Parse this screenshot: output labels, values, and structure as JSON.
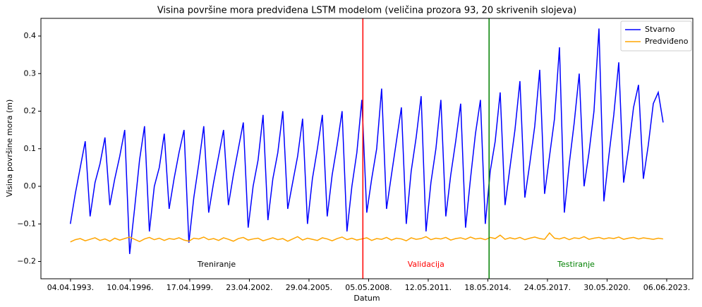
{
  "chart_data": {
    "type": "line",
    "title": "Visina površine mora predviđena LSTM modelom (veličina prozora 93, 20 skrivenih slojeva)",
    "x_label": "Datum",
    "y_label": "Visina površine mora (m)",
    "x": [
      "1993-04-01",
      "1993-07-01",
      "1993-10-01",
      "1994-01-01",
      "1994-04-01",
      "1994-07-01",
      "1994-10-01",
      "1995-01-01",
      "1995-04-01",
      "1995-07-01",
      "1995-10-01",
      "1996-01-01",
      "1996-04-01",
      "1996-07-01",
      "1996-10-01",
      "1997-01-01",
      "1997-04-01",
      "1997-07-01",
      "1997-10-01",
      "1998-01-01",
      "1998-04-01",
      "1998-07-01",
      "1998-10-01",
      "1999-01-01",
      "1999-04-01",
      "1999-07-01",
      "1999-10-01",
      "2000-01-01",
      "2000-04-01",
      "2000-07-01",
      "2000-10-01",
      "2001-01-01",
      "2001-04-01",
      "2001-07-01",
      "2001-10-01",
      "2002-01-01",
      "2002-04-01",
      "2002-07-01",
      "2002-10-01",
      "2003-01-01",
      "2003-04-01",
      "2003-07-01",
      "2003-10-01",
      "2004-01-01",
      "2004-04-01",
      "2004-07-01",
      "2004-10-01",
      "2005-01-01",
      "2005-04-01",
      "2005-07-01",
      "2005-10-01",
      "2006-01-01",
      "2006-04-01",
      "2006-07-01",
      "2006-10-01",
      "2007-01-01",
      "2007-04-01",
      "2007-07-01",
      "2007-10-01",
      "2008-01-01",
      "2008-04-01",
      "2008-07-01",
      "2008-10-01",
      "2009-01-01",
      "2009-04-01",
      "2009-07-01",
      "2009-10-01",
      "2010-01-01",
      "2010-04-01",
      "2010-07-01",
      "2010-10-01",
      "2011-01-01",
      "2011-04-01",
      "2011-07-01",
      "2011-10-01",
      "2012-01-01",
      "2012-04-01",
      "2012-07-01",
      "2012-10-01",
      "2013-01-01",
      "2013-04-01",
      "2013-07-01",
      "2013-10-01",
      "2014-01-01",
      "2014-04-01",
      "2014-07-01",
      "2014-10-01",
      "2015-01-01",
      "2015-04-01",
      "2015-07-01",
      "2015-10-01",
      "2016-01-01",
      "2016-04-01",
      "2016-07-01",
      "2016-10-01",
      "2017-01-01",
      "2017-04-01",
      "2017-07-01",
      "2017-10-01",
      "2018-01-01",
      "2018-04-01",
      "2018-07-01",
      "2018-10-01",
      "2019-01-01",
      "2019-04-01",
      "2019-07-01",
      "2019-10-01",
      "2020-01-01",
      "2020-04-01",
      "2020-07-01",
      "2020-10-01",
      "2021-01-01",
      "2021-04-01",
      "2021-07-01",
      "2021-10-01",
      "2022-01-01",
      "2022-04-01",
      "2022-07-01",
      "2022-10-01",
      "2023-01-01",
      "2023-04-01"
    ],
    "series": [
      {
        "name": "Stvarno",
        "color": "#0000ff",
        "values": [
          -0.1,
          -0.02,
          0.05,
          0.12,
          -0.08,
          0.01,
          0.06,
          0.13,
          -0.05,
          0.02,
          0.08,
          0.15,
          -0.18,
          -0.06,
          0.07,
          0.16,
          -0.12,
          0.0,
          0.05,
          0.14,
          -0.06,
          0.02,
          0.09,
          0.15,
          -0.15,
          -0.03,
          0.06,
          0.16,
          -0.07,
          0.01,
          0.08,
          0.15,
          -0.05,
          0.03,
          0.1,
          0.17,
          -0.11,
          0.0,
          0.07,
          0.19,
          -0.09,
          0.02,
          0.09,
          0.2,
          -0.06,
          0.01,
          0.08,
          0.18,
          -0.1,
          0.02,
          0.1,
          0.19,
          -0.08,
          0.03,
          0.11,
          0.2,
          -0.12,
          0.0,
          0.09,
          0.23,
          -0.07,
          0.02,
          0.1,
          0.26,
          -0.06,
          0.03,
          0.12,
          0.21,
          -0.1,
          0.04,
          0.13,
          0.24,
          -0.12,
          0.01,
          0.1,
          0.23,
          -0.08,
          0.03,
          0.12,
          0.22,
          -0.11,
          0.02,
          0.14,
          0.23,
          -0.1,
          0.04,
          0.12,
          0.25,
          -0.05,
          0.05,
          0.15,
          0.28,
          -0.03,
          0.06,
          0.16,
          0.31,
          -0.02,
          0.08,
          0.18,
          0.37,
          -0.07,
          0.06,
          0.17,
          0.3,
          0.0,
          0.09,
          0.2,
          0.42,
          -0.04,
          0.08,
          0.19,
          0.33,
          0.01,
          0.1,
          0.21,
          0.27,
          0.02,
          0.11,
          0.22,
          0.25,
          0.17
        ]
      },
      {
        "name": "Predviđeno",
        "color": "#ffa500",
        "values": [
          -0.148,
          -0.142,
          -0.139,
          -0.145,
          -0.141,
          -0.137,
          -0.144,
          -0.14,
          -0.146,
          -0.138,
          -0.143,
          -0.139,
          -0.135,
          -0.141,
          -0.147,
          -0.14,
          -0.136,
          -0.142,
          -0.138,
          -0.144,
          -0.139,
          -0.141,
          -0.137,
          -0.143,
          -0.146,
          -0.138,
          -0.14,
          -0.135,
          -0.142,
          -0.139,
          -0.144,
          -0.137,
          -0.141,
          -0.146,
          -0.139,
          -0.136,
          -0.143,
          -0.14,
          -0.138,
          -0.145,
          -0.141,
          -0.137,
          -0.142,
          -0.139,
          -0.146,
          -0.14,
          -0.134,
          -0.143,
          -0.138,
          -0.141,
          -0.144,
          -0.137,
          -0.14,
          -0.145,
          -0.139,
          -0.135,
          -0.142,
          -0.138,
          -0.143,
          -0.14,
          -0.137,
          -0.144,
          -0.139,
          -0.141,
          -0.136,
          -0.143,
          -0.138,
          -0.14,
          -0.145,
          -0.137,
          -0.141,
          -0.139,
          -0.134,
          -0.142,
          -0.138,
          -0.14,
          -0.136,
          -0.143,
          -0.139,
          -0.137,
          -0.141,
          -0.135,
          -0.14,
          -0.138,
          -0.142,
          -0.136,
          -0.139,
          -0.13,
          -0.141,
          -0.137,
          -0.14,
          -0.136,
          -0.142,
          -0.138,
          -0.135,
          -0.139,
          -0.141,
          -0.124,
          -0.138,
          -0.14,
          -0.136,
          -0.142,
          -0.137,
          -0.139,
          -0.134,
          -0.141,
          -0.138,
          -0.136,
          -0.14,
          -0.137,
          -0.139,
          -0.135,
          -0.141,
          -0.138,
          -0.136,
          -0.14,
          -0.137,
          -0.139,
          -0.141,
          -0.138,
          -0.14
        ]
      }
    ],
    "xlim": [
      "1991-10-05",
      "2024-10-01"
    ],
    "xticks": [
      {
        "value": "1993-04-04",
        "label": "04.04.1993."
      },
      {
        "value": "1996-04-10",
        "label": "10.04.1996."
      },
      {
        "value": "1999-04-17",
        "label": "17.04.1999."
      },
      {
        "value": "2002-04-23",
        "label": "23.04.2002."
      },
      {
        "value": "2005-04-29",
        "label": "29.04.2005."
      },
      {
        "value": "2008-05-05",
        "label": "05.05.2008."
      },
      {
        "value": "2011-05-12",
        "label": "12.05.2011."
      },
      {
        "value": "2014-05-18",
        "label": "18.05.2014."
      },
      {
        "value": "2017-05-24",
        "label": "24.05.2017."
      },
      {
        "value": "2020-05-30",
        "label": "30.05.2020."
      },
      {
        "value": "2023-06-06",
        "label": "06.06.2023."
      }
    ],
    "ylim": [
      -0.246,
      0.447
    ],
    "yticks": [
      {
        "value": -0.2,
        "label": "−0.2"
      },
      {
        "value": -0.1,
        "label": "−0.1"
      },
      {
        "value": 0,
        "label": "0.0"
      },
      {
        "value": 0.1,
        "label": "0.1"
      },
      {
        "value": 0.2,
        "label": "0.2"
      },
      {
        "value": 0.3,
        "label": "0.3"
      },
      {
        "value": 0.4,
        "label": "0.4"
      }
    ],
    "split_lines": [
      {
        "x": "2008-01-20",
        "color": "#ff0000"
      },
      {
        "x": "2014-06-10",
        "color": "#008000"
      }
    ],
    "regions": [
      {
        "label": "Treniranje",
        "color": "#000000"
      },
      {
        "label": "Validacija",
        "color": "#ff0000"
      },
      {
        "label": "Testiranje",
        "color": "#008000"
      }
    ],
    "legend": "upper right"
  }
}
